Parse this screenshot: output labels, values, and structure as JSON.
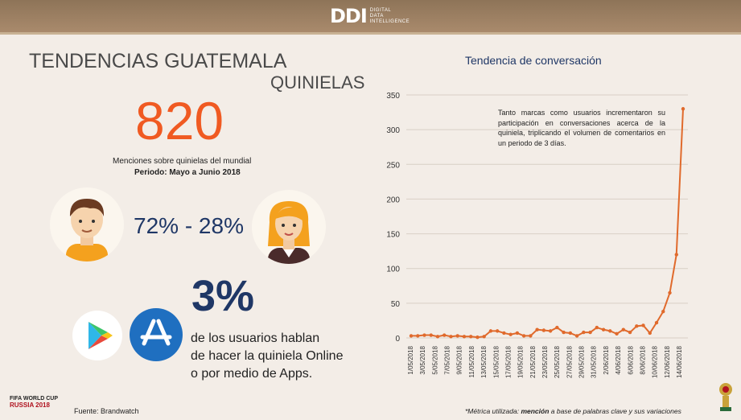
{
  "header": {
    "logo_mark": "DDI",
    "logo_line1": "DIGITAL",
    "logo_line2": "DATA",
    "logo_line3": "INTELLIGENCE"
  },
  "title_line1": "TENDENCIAS GUATEMALA",
  "title_line2": "QUINIELAS",
  "mentions": {
    "count": "820",
    "caption": "Menciones sobre quinielas del mundial",
    "period": "Periodo: Mayo a Junio 2018"
  },
  "gender_ratio": "72% - 28%",
  "apps": {
    "percent": "3%",
    "line1": "de los usuarios hablan",
    "line2": "de hacer la quiniela Online",
    "line3": "o por medio de Apps."
  },
  "icons": [
    "male-avatar-icon",
    "female-avatar-icon",
    "google-play-icon",
    "app-store-icon",
    "world-cup-trophy-icon"
  ],
  "colors": {
    "accent": "#f05a22",
    "navy": "#1f3766",
    "line": "#e06a2c"
  },
  "chart_data": {
    "type": "line",
    "title": "Tendencia de conversación",
    "annotation": "Tanto marcas como usuarios incrementaron su participación en conversaciones acerca de la quiniela, triplicando el volumen de comentarios en un periodo de 3 días.",
    "ylim": [
      0,
      350
    ],
    "yticks": [
      0,
      50,
      100,
      150,
      200,
      250,
      300,
      350
    ],
    "grid": true,
    "xticklabels": [
      "1/05/2018",
      "3/05/2018",
      "5/05/2018",
      "7/05/2018",
      "9/05/2018",
      "11/05/2018",
      "13/05/2018",
      "15/05/2018",
      "17/05/2018",
      "19/05/2018",
      "21/05/2018",
      "23/05/2018",
      "25/05/2018",
      "27/05/2018",
      "29/05/2018",
      "31/05/2018",
      "2/06/2018",
      "4/06/2018",
      "6/06/2018",
      "8/06/2018",
      "10/06/2018",
      "12/06/2018",
      "14/06/2018"
    ],
    "series": [
      {
        "values": [
          3,
          3,
          4,
          4,
          2,
          4,
          2,
          3,
          2,
          2,
          1,
          2,
          10,
          10,
          7,
          5,
          7,
          3,
          3,
          12,
          11,
          10,
          15,
          8,
          7,
          3,
          8,
          8,
          15,
          12,
          10,
          6,
          12,
          8,
          17,
          18,
          7,
          22,
          38,
          65,
          120,
          330
        ]
      }
    ]
  },
  "footer": {
    "source": "Fuente: Brandwatch",
    "metric_prefix": "*Métrica utilizada: ",
    "metric_bold": "mención",
    "metric_suffix": " a base de palabras clave y sus variaciones",
    "fifa_line1": "FIFA WORLD CUP",
    "fifa_line2": "RUSSIA 2018"
  }
}
